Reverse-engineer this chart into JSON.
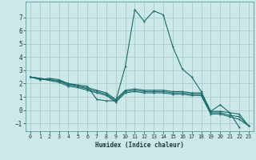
{
  "xlabel": "Humidex (Indice chaleur)",
  "xlim": [
    -0.5,
    23.5
  ],
  "ylim": [
    -1.6,
    8.2
  ],
  "xticks": [
    0,
    1,
    2,
    3,
    4,
    5,
    6,
    7,
    8,
    9,
    10,
    11,
    12,
    13,
    14,
    15,
    16,
    17,
    18,
    19,
    20,
    21,
    22,
    23
  ],
  "yticks": [
    -1,
    0,
    1,
    2,
    3,
    4,
    5,
    6,
    7
  ],
  "bg_color": "#cce8e8",
  "grid_color": "#aacccc",
  "line_color": "#1a6b6b",
  "lines": [
    {
      "x": [
        0,
        1,
        2,
        3,
        4,
        5,
        6,
        7,
        8,
        9,
        10,
        11,
        12,
        13,
        14,
        15,
        16,
        17,
        18,
        19,
        20,
        21,
        22
      ],
      "y": [
        2.5,
        2.3,
        2.4,
        2.3,
        2.0,
        1.9,
        1.8,
        0.8,
        0.7,
        0.7,
        3.3,
        7.6,
        6.7,
        7.5,
        7.2,
        4.8,
        3.1,
        2.5,
        1.4,
        -0.1,
        0.4,
        -0.2,
        -1.3
      ]
    },
    {
      "x": [
        0,
        3,
        4,
        5,
        6,
        7,
        8,
        9,
        10,
        11,
        12,
        13,
        14,
        15,
        16,
        17,
        18,
        19,
        20,
        21,
        22,
        23
      ],
      "y": [
        2.5,
        2.2,
        2.0,
        1.8,
        1.7,
        1.5,
        1.3,
        0.8,
        1.5,
        1.6,
        1.5,
        1.5,
        1.5,
        1.4,
        1.4,
        1.3,
        1.3,
        -0.1,
        -0.1,
        -0.2,
        -0.3,
        -1.2
      ]
    },
    {
      "x": [
        0,
        3,
        4,
        5,
        6,
        7,
        8,
        9,
        10,
        11,
        12,
        13,
        14,
        15,
        16,
        17,
        18,
        19,
        20,
        21,
        22,
        23
      ],
      "y": [
        2.5,
        2.2,
        1.9,
        1.8,
        1.6,
        1.4,
        1.2,
        0.7,
        1.4,
        1.5,
        1.4,
        1.4,
        1.4,
        1.3,
        1.3,
        1.2,
        1.2,
        -0.2,
        -0.2,
        -0.4,
        -0.5,
        -1.2
      ]
    },
    {
      "x": [
        0,
        3,
        4,
        5,
        6,
        7,
        8,
        9,
        10,
        11,
        12,
        13,
        14,
        15,
        16,
        17,
        18,
        19,
        20,
        21,
        22,
        23
      ],
      "y": [
        2.5,
        2.1,
        1.8,
        1.7,
        1.5,
        1.3,
        1.1,
        0.6,
        1.3,
        1.4,
        1.3,
        1.3,
        1.3,
        1.2,
        1.2,
        1.1,
        1.1,
        -0.3,
        -0.3,
        -0.5,
        -0.7,
        -1.2
      ]
    }
  ]
}
